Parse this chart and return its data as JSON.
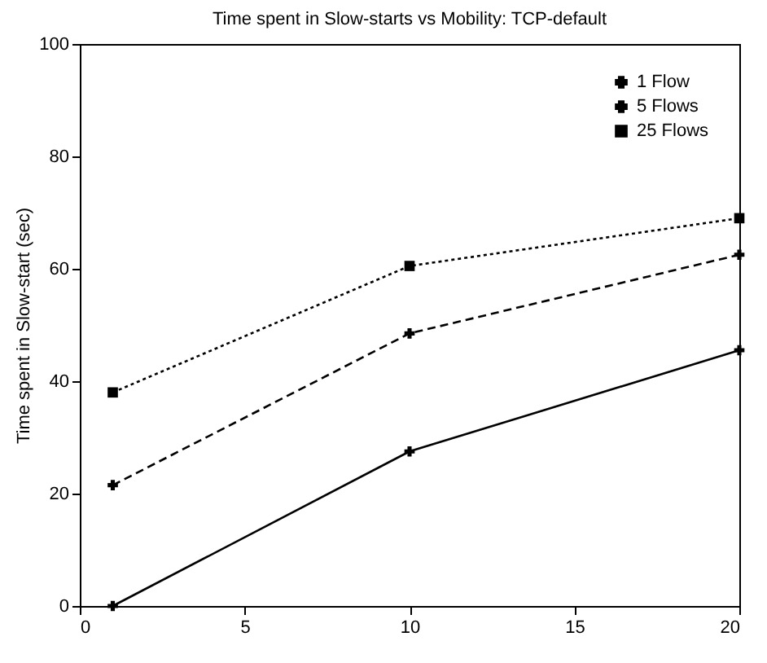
{
  "chart_data": {
    "type": "line",
    "title": "Time spent in Slow-starts vs Mobility: TCP-default",
    "ylabel": "Time spent in Slow-start (sec)",
    "x": [
      1,
      10,
      20
    ],
    "series": [
      {
        "name": "1 Flow",
        "color": "#000000",
        "marker": "cross",
        "line_style": "solid",
        "values": [
          0,
          27.5,
          45.5
        ]
      },
      {
        "name": "5 Flows",
        "color": "#000000",
        "marker": "cross",
        "line_style": "dashed",
        "values": [
          21.5,
          48.5,
          62.5
        ]
      },
      {
        "name": "25 Flows",
        "color": "#000000",
        "marker": "square",
        "line_style": "dotted",
        "values": [
          38,
          60.5,
          69
        ]
      }
    ],
    "xlim": [
      0,
      20
    ],
    "xticks": [
      0,
      5,
      10,
      15,
      20
    ],
    "ylim": [
      0,
      100
    ],
    "yticks": [
      0,
      20,
      40,
      60,
      80,
      100
    ],
    "grid": false,
    "legend": "top right"
  }
}
